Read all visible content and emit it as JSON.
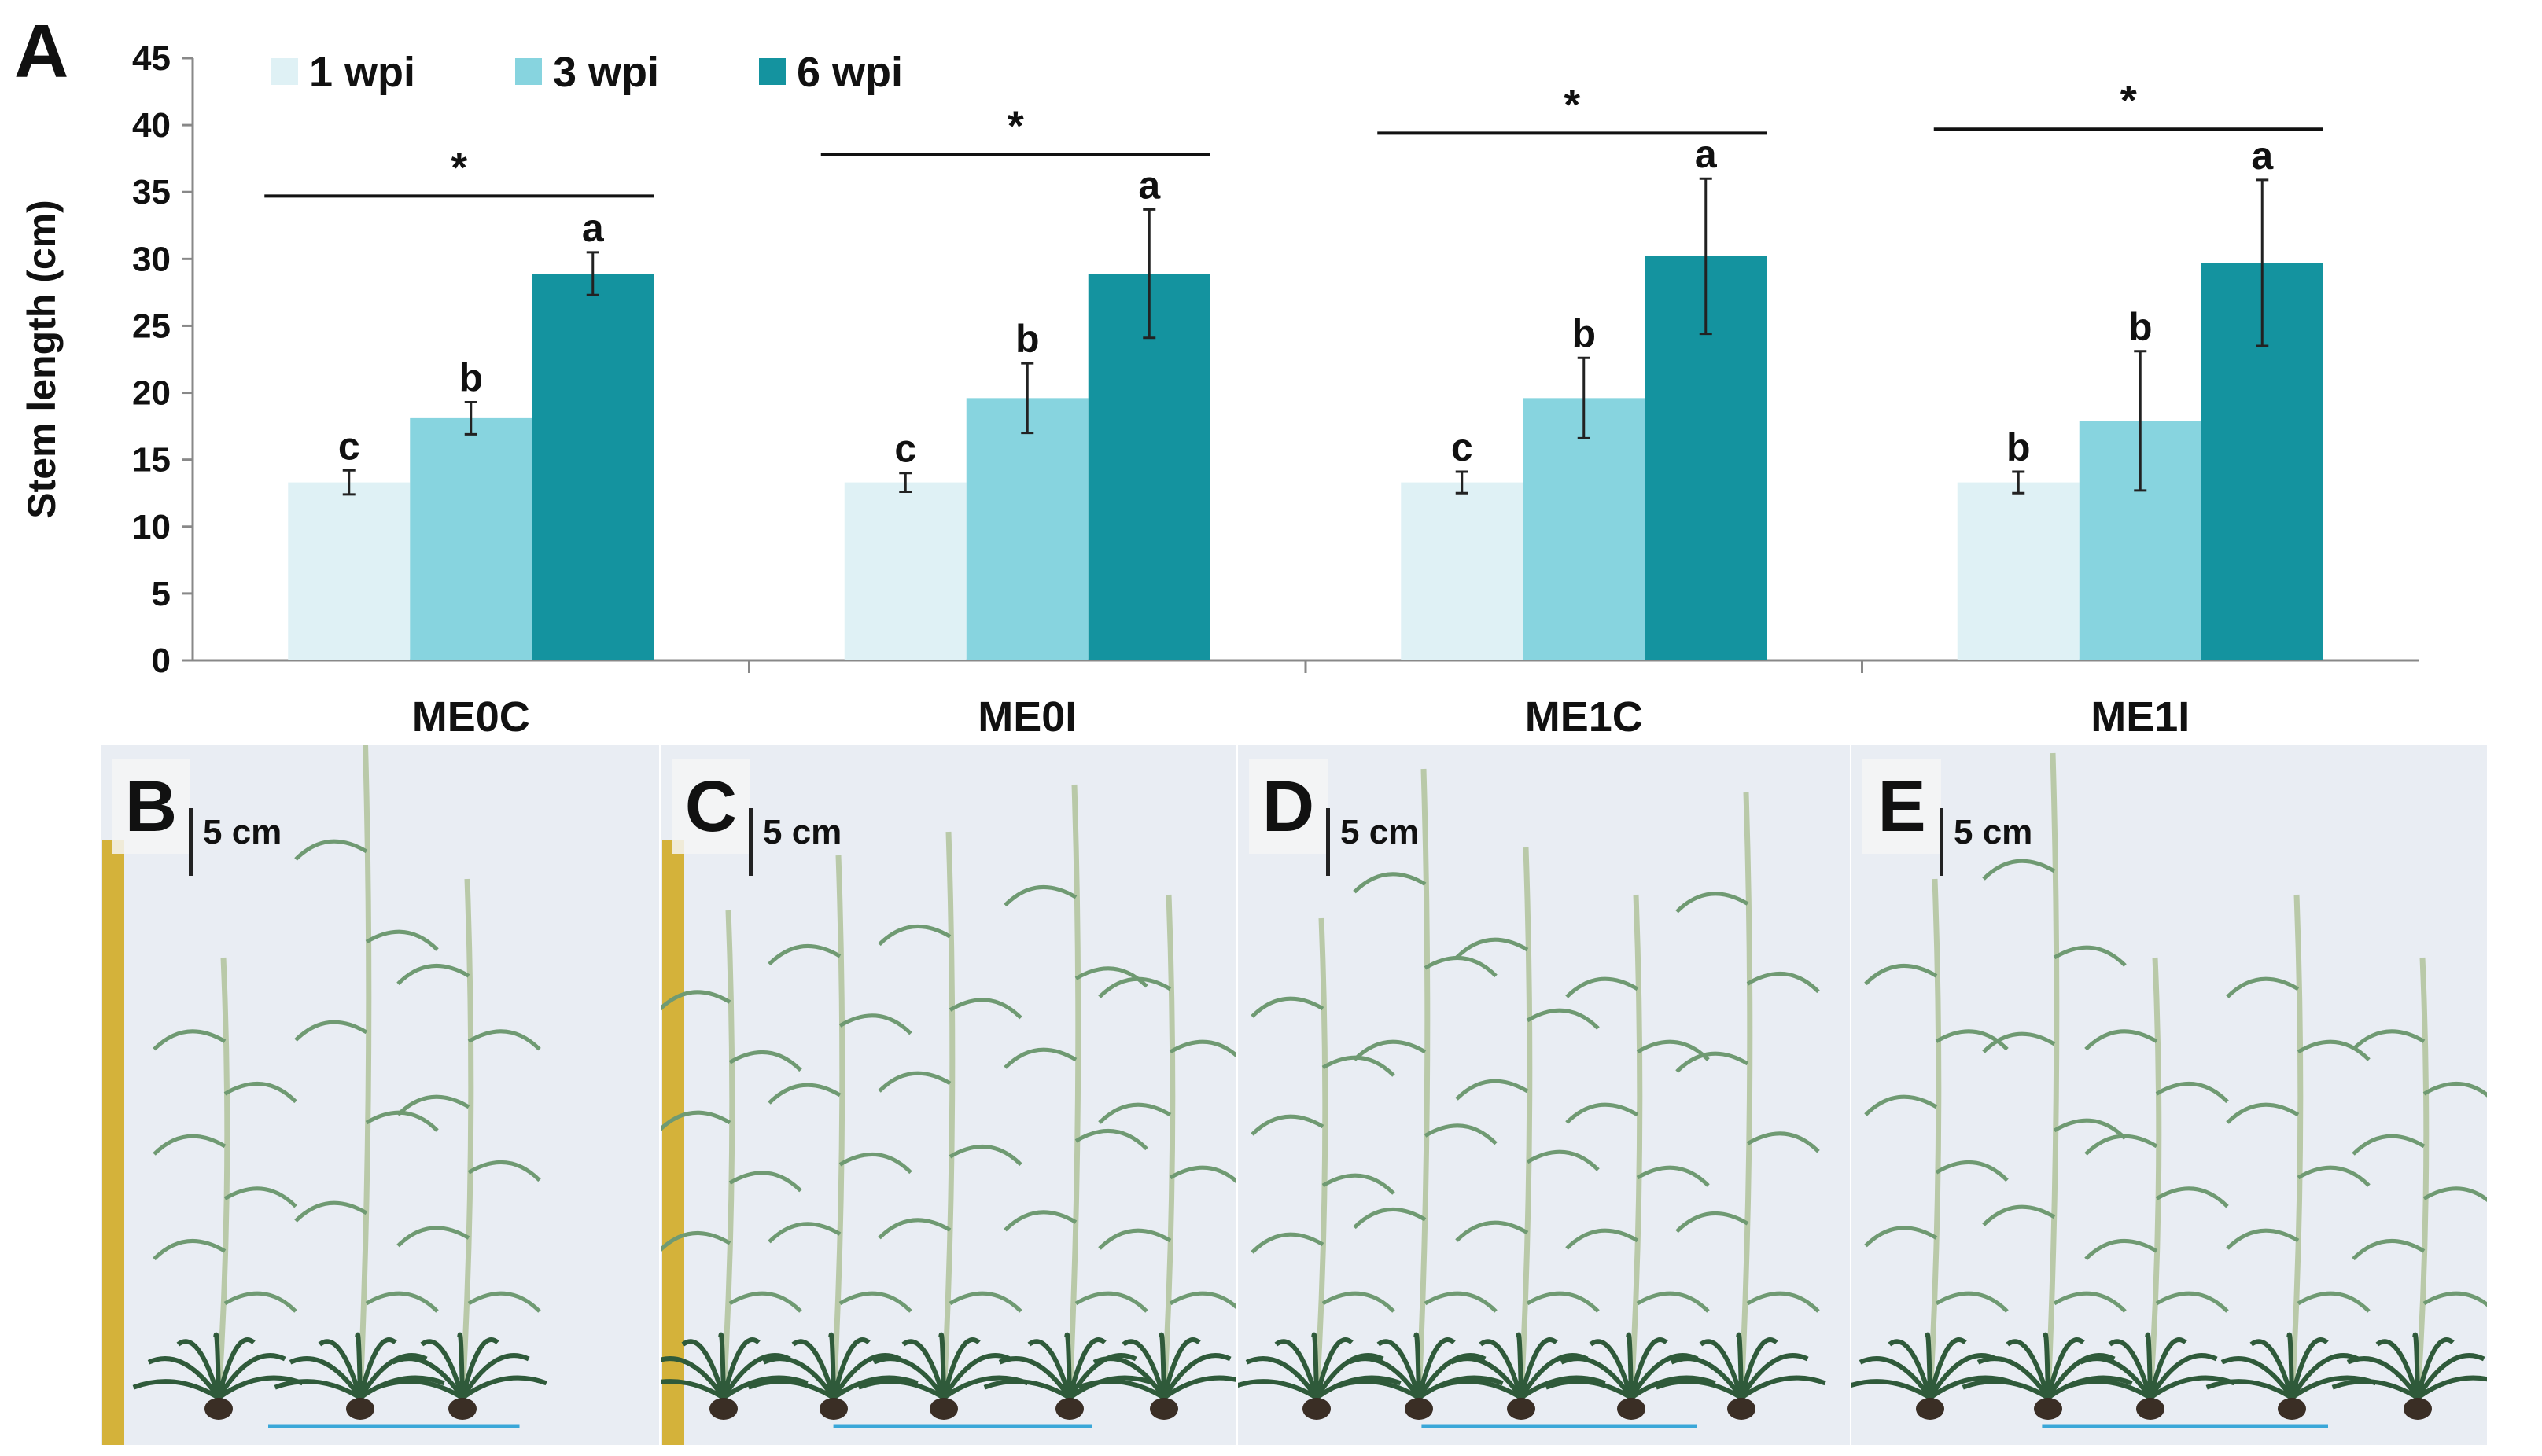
{
  "chart_data": {
    "type": "bar",
    "panel_label": "A",
    "ylabel": "Stem length (cm)",
    "xlabel": "",
    "ylim": [
      0,
      45
    ],
    "yticks": [
      0,
      5,
      10,
      15,
      20,
      25,
      30,
      35,
      40,
      45
    ],
    "categories": [
      "ME0C",
      "ME0I",
      "ME1C",
      "ME1I"
    ],
    "series": [
      {
        "name": "1 wpi",
        "color": "#dff1f5",
        "values": [
          13.3,
          13.3,
          13.3,
          13.3
        ],
        "errors": [
          0.9,
          0.7,
          0.8,
          0.8
        ],
        "letters": [
          "c",
          "c",
          "c",
          "b"
        ]
      },
      {
        "name": "3 wpi",
        "color": "#87d4df",
        "values": [
          18.1,
          19.6,
          19.6,
          17.9
        ],
        "errors": [
          1.2,
          2.6,
          3.0,
          5.2
        ],
        "letters": [
          "b",
          "b",
          "b",
          "b"
        ]
      },
      {
        "name": "6 wpi",
        "color": "#14939f",
        "values": [
          28.9,
          28.9,
          30.2,
          29.7
        ],
        "errors": [
          1.6,
          4.8,
          5.8,
          6.2
        ],
        "letters": [
          "a",
          "a",
          "a",
          "a"
        ]
      }
    ],
    "significance": [
      {
        "label": "*",
        "y": 34.7
      },
      {
        "label": "*",
        "y": 37.8
      },
      {
        "label": "*",
        "y": 39.4
      },
      {
        "label": "*",
        "y": 39.7
      }
    ]
  },
  "photo_panels": [
    {
      "letter": "B",
      "scale": "5 cm"
    },
    {
      "letter": "C",
      "scale": "5 cm"
    },
    {
      "letter": "D",
      "scale": "5 cm"
    },
    {
      "letter": "E",
      "scale": "5 cm"
    }
  ],
  "colors": {
    "leaf": "#2f5a3a",
    "stem": "#b9c9a8",
    "ruler": "#d4b23a"
  }
}
